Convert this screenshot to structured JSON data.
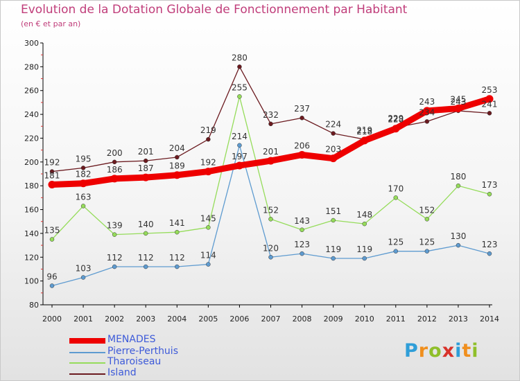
{
  "chart_data": {
    "type": "line",
    "title": "Evolution de la Dotation Globale de Fonctionnement par Habitant",
    "subtitle": "(en € et par an)",
    "xlabel": "",
    "ylabel": "",
    "ylim": [
      80,
      300
    ],
    "yticks": [
      80,
      100,
      120,
      140,
      160,
      180,
      200,
      220,
      240,
      260,
      280,
      300
    ],
    "x": [
      "2000",
      "2001",
      "2002",
      "2003",
      "2004",
      "2005",
      "2006",
      "2007",
      "2008",
      "2009",
      "2010",
      "2011",
      "2012",
      "2013",
      "2014"
    ],
    "grid": false,
    "legend": "bottom-left",
    "series": [
      {
        "name": "MENADES",
        "color": "#ee0000",
        "values": [
          181,
          182,
          186,
          187,
          189,
          192,
          197,
          201,
          206,
          203,
          218,
          228,
          243,
          245,
          253
        ]
      },
      {
        "name": "Pierre-Perthuis",
        "color": "#5e9bd0",
        "values": [
          96,
          103,
          112,
          112,
          112,
          114,
          214,
          120,
          123,
          119,
          119,
          125,
          125,
          130,
          123
        ]
      },
      {
        "name": "Tharoiseau",
        "color": "#95dc5a",
        "values": [
          135,
          163,
          139,
          140,
          141,
          145,
          255,
          152,
          143,
          151,
          148,
          170,
          152,
          180,
          173
        ]
      },
      {
        "name": "Island",
        "color": "#6b1a1f",
        "values": [
          192,
          195,
          200,
          201,
          204,
          219,
          280,
          232,
          237,
          224,
          219,
          229,
          234,
          243,
          241
        ]
      }
    ]
  },
  "logo": {
    "letters": [
      "P",
      "r",
      "o",
      "x",
      "i",
      "t",
      "i"
    ]
  }
}
